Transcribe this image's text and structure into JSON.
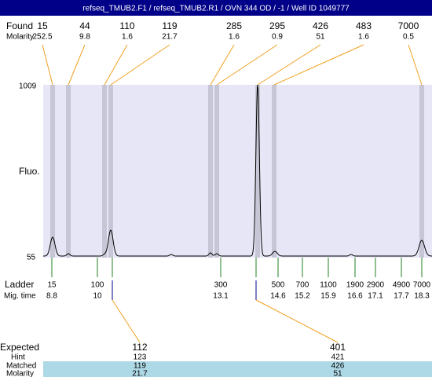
{
  "header": {
    "title": "refseq_TMUB2.F1 / refseq_TMUB2.R1 / OVN 344 OD / -1 / Well ID 1049777"
  },
  "found": {
    "label": "Found",
    "molarity_label": "Molarity",
    "sizes": [
      15,
      44,
      110,
      119,
      285,
      295,
      426,
      483,
      7000
    ],
    "molarity": [
      252.5,
      9.8,
      1.6,
      21.7,
      1.6,
      0.9,
      51,
      1.6,
      0.5
    ]
  },
  "axis": {
    "top": 1009,
    "bottom": 55,
    "label": "Fluo."
  },
  "ladder": {
    "label": "Ladder",
    "time_label": "Mig. time",
    "sizes": [
      15,
      100,
      300,
      500,
      700,
      1100,
      1900,
      2900,
      4900,
      7000
    ],
    "times": [
      8.8,
      10,
      13.1,
      14.6,
      15.2,
      15.9,
      16.6,
      17.1,
      17.7,
      18.3
    ]
  },
  "expected": {
    "labels": [
      "Expected",
      "Hint",
      "Matched",
      "Molarity"
    ],
    "columns": [
      {
        "expected": 112,
        "hint": 123,
        "matched": 119,
        "molarity": 21.7
      },
      {
        "expected": 401,
        "hint": 421,
        "matched": 426,
        "molarity": 51
      }
    ]
  }
}
